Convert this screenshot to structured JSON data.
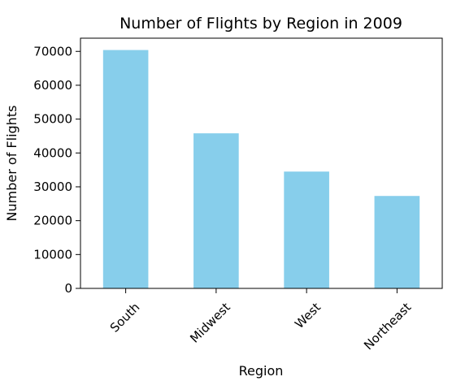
{
  "chart_data": {
    "type": "bar",
    "title": "Number of Flights by Region in 2009",
    "xlabel": "Region",
    "ylabel": "Number of Flights",
    "categories": [
      "South",
      "Midwest",
      "West",
      "Northeast"
    ],
    "values": [
      70400,
      45800,
      34500,
      27300
    ],
    "ylim": [
      0,
      73900
    ],
    "yticks": [
      0,
      10000,
      20000,
      30000,
      40000,
      50000,
      60000,
      70000
    ],
    "bar_color": "#87CEEB",
    "grid": false,
    "legend": "none"
  }
}
